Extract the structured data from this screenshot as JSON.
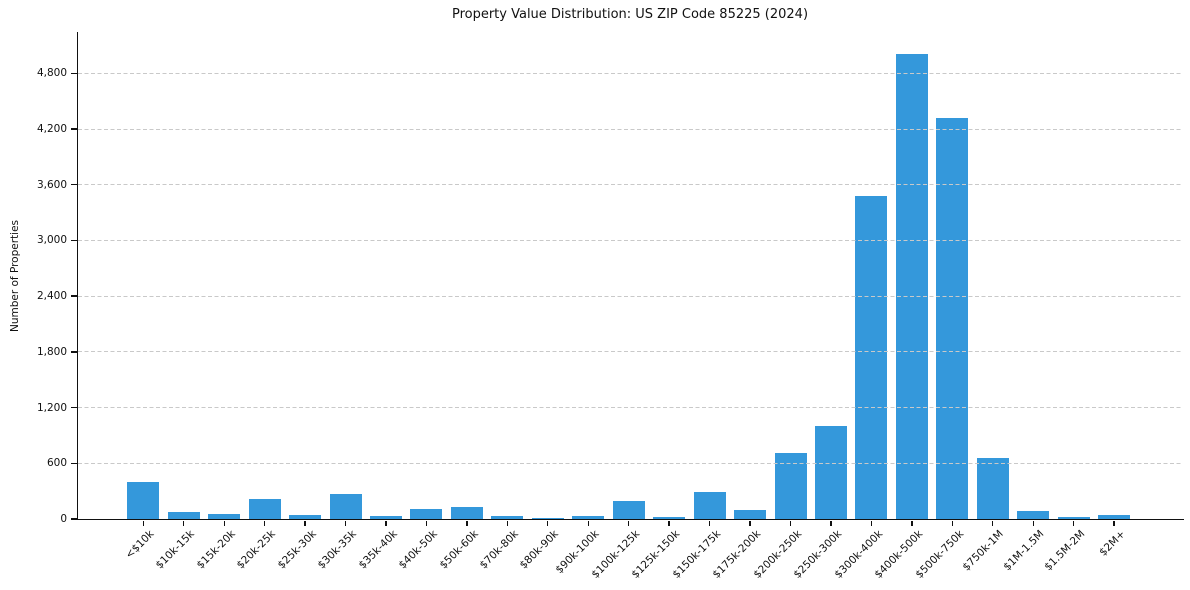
{
  "chart_data": {
    "type": "bar",
    "title": "Property Value Distribution: US ZIP Code 85225 (2024)",
    "xlabel": "",
    "ylabel": "Number of Properties",
    "categories": [
      "<$10k",
      "$10k-15k",
      "$15k-20k",
      "$20k-25k",
      "$25k-30k",
      "$30k-35k",
      "$35k-40k",
      "$40k-50k",
      "$50k-60k",
      "$70k-80k",
      "$80k-90k",
      "$90k-100k",
      "$100k-125k",
      "$125k-150k",
      "$150k-175k",
      "$175k-200k",
      "$200k-250k",
      "$250k-300k",
      "$300k-400k",
      "$400k-500k",
      "$500k-750k",
      "$750k-1M",
      "$1M-1.5M",
      "$1.5M-2M",
      "$2M+"
    ],
    "values": [
      400,
      80,
      55,
      220,
      40,
      270,
      30,
      110,
      130,
      30,
      15,
      30,
      190,
      20,
      290,
      100,
      710,
      1000,
      3480,
      5010,
      4320,
      660,
      90,
      25,
      45
    ],
    "ylim": [
      0,
      5245
    ],
    "ytick_interval": 600,
    "ytick_labels": [
      "0",
      "600",
      "1,200",
      "1,800",
      "2,400",
      "3,000",
      "3,600",
      "4,200",
      "4,800"
    ],
    "xtick_rotation_deg": 45,
    "grid": {
      "axis": "y",
      "style": "dashed",
      "on": true
    },
    "legend_position": "none",
    "colors": {
      "bar": "#3498db",
      "grid": "#c9c9c9",
      "axis": "#111111",
      "text": "#111111"
    }
  }
}
